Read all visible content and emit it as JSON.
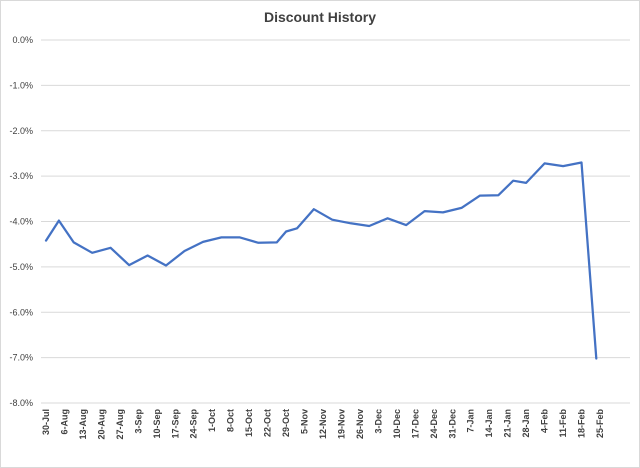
{
  "chart_data": {
    "type": "line",
    "title": "Discount History",
    "xlabel": "",
    "ylabel": "",
    "ylim": [
      -8.0,
      0.0
    ],
    "y_ticks": [
      "0.0%",
      "-1.0%",
      "-2.0%",
      "-3.0%",
      "-4.0%",
      "-5.0%",
      "-6.0%",
      "-7.0%",
      "-8.0%"
    ],
    "grid": true,
    "legend": "none",
    "x_tick_labels": [
      "30-Jul",
      "6-Aug",
      "13-Aug",
      "20-Aug",
      "27-Aug",
      "3-Sep",
      "10-Sep",
      "17-Sep",
      "24-Sep",
      "1-Oct",
      "8-Oct",
      "15-Oct",
      "22-Oct",
      "29-Oct",
      "5-Nov",
      "12-Nov",
      "19-Nov",
      "26-Nov",
      "3-Dec",
      "10-Dec",
      "17-Dec",
      "24-Dec",
      "31-Dec",
      "7-Jan",
      "14-Jan",
      "21-Jan",
      "28-Jan",
      "4-Feb",
      "11-Feb",
      "18-Feb",
      "25-Feb"
    ],
    "series": [
      {
        "color": "#4472c4",
        "x": [
          0,
          0.7,
          1.5,
          2.5,
          3.5,
          4.5,
          5.5,
          6.5,
          7.5,
          8.5,
          9.5,
          10.5,
          11.5,
          12.5,
          13.0,
          13.6,
          14.5,
          15.5,
          16.5,
          17.5,
          18.5,
          19.5,
          20.5,
          21.5,
          22.5,
          23.5,
          24.5,
          25.3,
          26.0,
          27.0,
          28.0,
          29.0,
          29.8
        ],
        "values": [
          -4.42,
          -3.98,
          -4.46,
          -4.69,
          -4.58,
          -4.96,
          -4.75,
          -4.97,
          -4.65,
          -4.45,
          -4.35,
          -4.35,
          -4.47,
          -4.46,
          -4.22,
          -4.15,
          -3.73,
          -3.96,
          -4.04,
          -4.1,
          -3.93,
          -4.08,
          -3.77,
          -3.8,
          -3.7,
          -3.43,
          -3.42,
          -3.1,
          -3.15,
          -2.72,
          -2.78,
          -2.7,
          -7.02
        ]
      }
    ]
  }
}
